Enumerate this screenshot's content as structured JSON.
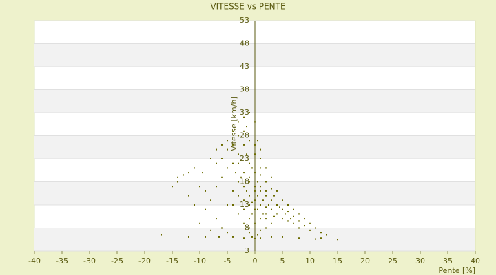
{
  "chart_data": {
    "type": "scatter",
    "title": "VITESSE vs PENTE",
    "xlabel": "Pente [%]",
    "ylabel": "Vitesse [km/h]",
    "xlim": [
      -40,
      40
    ],
    "xticks": [
      -40,
      -35,
      -30,
      -25,
      -20,
      -15,
      -10,
      -5,
      0,
      5,
      10,
      15,
      20,
      25,
      30,
      35,
      40
    ],
    "ylim": [
      3,
      53
    ],
    "yticks": [
      3,
      8,
      13,
      18,
      23,
      28,
      33,
      38,
      43,
      48,
      53
    ],
    "grid": true,
    "color": "#6b6b00",
    "x": [
      -17,
      -12,
      -9,
      -6.5,
      -4,
      -2,
      -0.5,
      0,
      0.5,
      1,
      3,
      5,
      8,
      11,
      12,
      13,
      15,
      -14,
      -14,
      -15,
      -13,
      -12,
      -11,
      -10,
      -9,
      -9.5,
      -8,
      -7,
      -6,
      -5,
      -4,
      -3,
      -2,
      -1.5,
      -1,
      0,
      0.5,
      -3,
      -4,
      -5,
      -6,
      -7,
      -8,
      -9,
      -7,
      -6,
      -5,
      -4,
      -3,
      -2,
      -1,
      0,
      1,
      2,
      3,
      4,
      5,
      6,
      7,
      8,
      9,
      10,
      11,
      9,
      8,
      7,
      6,
      5,
      4,
      3,
      2,
      1,
      0,
      -1,
      -2,
      -3,
      -4,
      -3,
      -2,
      -1,
      0,
      1,
      2,
      3,
      4,
      5,
      6,
      7,
      3,
      2,
      1,
      -1,
      -2,
      -1,
      0,
      1,
      2,
      -1,
      0,
      1,
      2,
      -1,
      0,
      1,
      2,
      3,
      -2,
      -0.5,
      0.5,
      1.5,
      -1.5,
      0.5,
      -0.5,
      1,
      -2.5,
      2.5,
      3.5,
      4.5,
      -3.5,
      -1.5,
      0.5,
      -0.5,
      1.5,
      0,
      -1,
      2,
      3.5,
      5.5,
      6.5,
      8,
      10,
      12,
      -5,
      -8,
      -10,
      -11,
      -12,
      -7,
      -6,
      -5,
      -4,
      -3,
      -2,
      -1,
      0,
      1,
      -3,
      -2
    ],
    "values": [
      6.5,
      6,
      6,
      6,
      6,
      5.8,
      6,
      5.7,
      6.5,
      5.8,
      6,
      6,
      5.8,
      5.6,
      5.8,
      6.5,
      5.5,
      19,
      18,
      17,
      19.5,
      20,
      21,
      17,
      16,
      20,
      23,
      25,
      26,
      27,
      29,
      31,
      32,
      30,
      33,
      31,
      27,
      24,
      22,
      21,
      19,
      17,
      14,
      12,
      10,
      8,
      13,
      16,
      18,
      20,
      22,
      24,
      23,
      21,
      19,
      16,
      14,
      13,
      12,
      11,
      10,
      9,
      8,
      8.5,
      9.5,
      10.5,
      11.5,
      12,
      13,
      14,
      15,
      16,
      17,
      18,
      17,
      15,
      13,
      11,
      9,
      8,
      9,
      10,
      11,
      12,
      11,
      10,
      9.5,
      9,
      9,
      8,
      7.5,
      7,
      12,
      13,
      14,
      13,
      12.5,
      15,
      16,
      17,
      18,
      19,
      20,
      19.5,
      16,
      16.5,
      14,
      11,
      12,
      14,
      16,
      18,
      21,
      21,
      19,
      13,
      15,
      12.5,
      20,
      24,
      15,
      13.5,
      11,
      12,
      10,
      10,
      10.5,
      11,
      10,
      8,
      7.5,
      7,
      7,
      7.5,
      9,
      13,
      15,
      22,
      23,
      25,
      26,
      28,
      29,
      27,
      26,
      25,
      22,
      26
    ]
  }
}
